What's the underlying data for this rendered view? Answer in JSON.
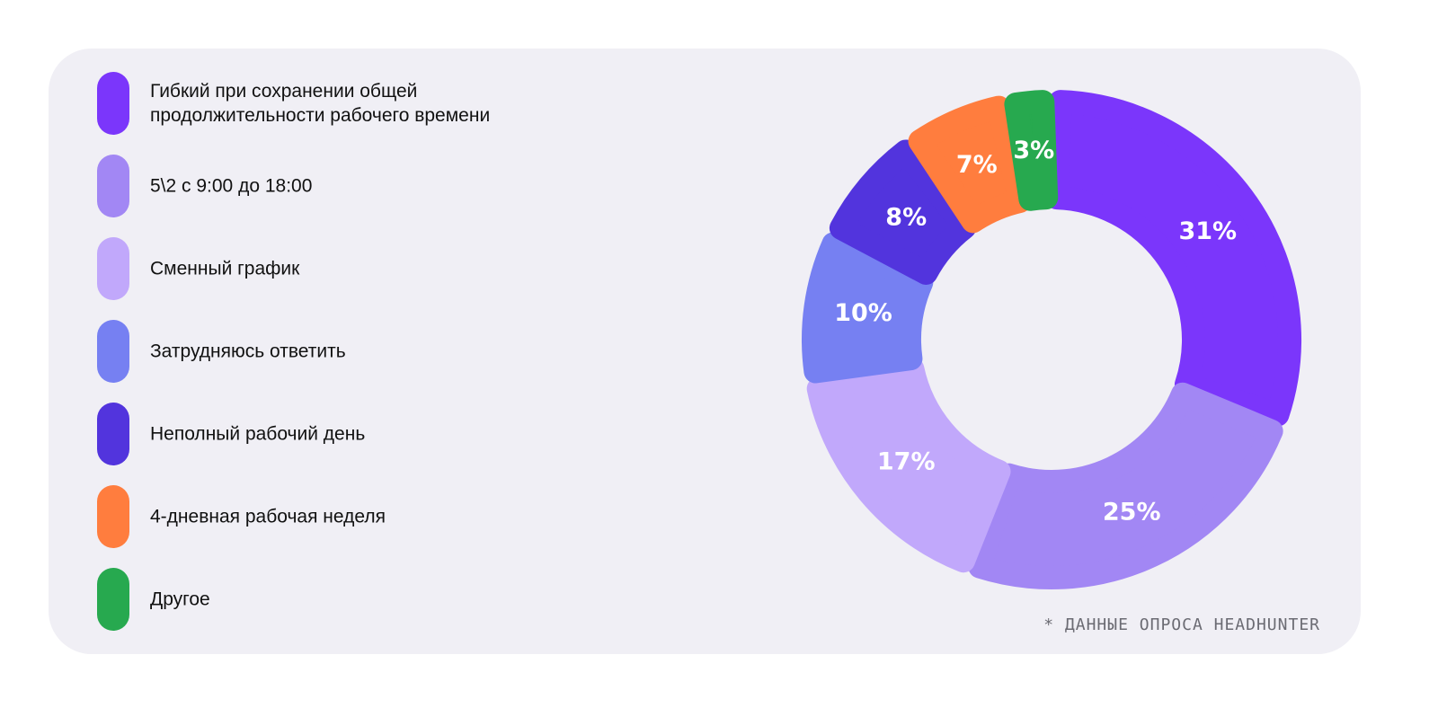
{
  "chart_data": {
    "type": "pie",
    "donut": true,
    "slices": [
      {
        "label": "Гибкий при сохранении общей продолжительности рабочего времени",
        "value": 31,
        "value_label": "31%",
        "color": "#7b36fb"
      },
      {
        "label": "5\\2 с 9:00 до 18:00",
        "value": 25,
        "value_label": "25%",
        "color": "#a287f4"
      },
      {
        "label": "Сменный график",
        "value": 17,
        "value_label": "17%",
        "color": "#c1a8fb"
      },
      {
        "label": "Затрудняюсь ответить",
        "value": 10,
        "value_label": "10%",
        "color": "#7680f2"
      },
      {
        "label": "Неполный рабочий день",
        "value": 8,
        "value_label": "8%",
        "color": "#5234dd"
      },
      {
        "label": "4-дневная рабочая неделя",
        "value": 7,
        "value_label": "7%",
        "color": "#ff7d3e"
      },
      {
        "label": "Другое",
        "value": 3,
        "value_label": "3%",
        "color": "#27a94f"
      }
    ],
    "legend_position": "left"
  },
  "footnote": "* ДАННЫЕ ОПРОСА HEADHUNTER"
}
